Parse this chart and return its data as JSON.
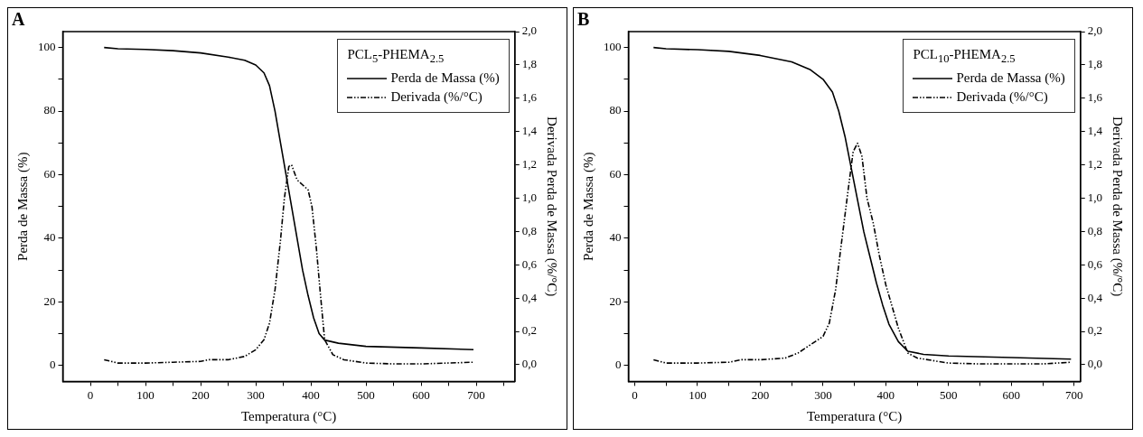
{
  "chart_data": [
    {
      "type": "line",
      "title": "A",
      "legend_title": "PCL$_{5}$-PHEMA$_{2.5}$",
      "xlabel": "Temperatura (°C)",
      "ylabel": "Perda de Massa (%)",
      "y2label": "Derivada Perda de Massa (%/°C)",
      "xlim": [
        -50,
        770
      ],
      "xticks": [
        0,
        {
          "value": 50,
          "label": null
        },
        100,
        {
          "value": 150,
          "label": null
        },
        200,
        {
          "value": 250,
          "label": null
        },
        300,
        {
          "value": 350,
          "label": null
        },
        400,
        {
          "value": 450,
          "label": null
        },
        500,
        {
          "value": 550,
          "label": null
        },
        600,
        {
          "value": 650,
          "label": null
        },
        700,
        {
          "value": 750,
          "label": null
        }
      ],
      "ylim": [
        -5,
        105
      ],
      "yticks": [
        0,
        {
          "value": 10,
          "label": null
        },
        20,
        {
          "value": 30,
          "label": null
        },
        40,
        {
          "value": 50,
          "label": null
        },
        60,
        {
          "value": 70,
          "label": null
        },
        80,
        {
          "value": 90,
          "label": null
        },
        100
      ],
      "y2lim": [
        -0.1,
        2.0
      ],
      "y2ticks": [
        {
          "value": 0,
          "label": "0,0"
        },
        {
          "value": 0.2,
          "label": "0,2"
        },
        {
          "value": 0.4,
          "label": "0,4"
        },
        {
          "value": 0.6,
          "label": "0,6"
        },
        {
          "value": 0.8,
          "label": "0,8"
        },
        {
          "value": 1.0,
          "label": "1,0"
        },
        {
          "value": 1.2,
          "label": "1,2"
        },
        {
          "value": 1.4,
          "label": "1,4"
        },
        {
          "value": 1.6,
          "label": "1,6"
        },
        {
          "value": 1.8,
          "label": "1,8"
        },
        {
          "value": 2.0,
          "label": "2,0"
        }
      ],
      "grid": false,
      "legend": "top right",
      "series": [
        {
          "name": "Perda de Massa (%)",
          "color": "#000000",
          "line_style": "solid",
          "x": [
            25,
            50,
            100,
            150,
            200,
            250,
            280,
            300,
            315,
            325,
            335,
            345,
            355,
            365,
            375,
            385,
            395,
            405,
            415,
            425,
            450,
            500,
            600,
            695
          ],
          "values": [
            100,
            99.6,
            99.4,
            99,
            98.3,
            97,
            96,
            94.5,
            92,
            88,
            80,
            70,
            60,
            50,
            40,
            30,
            22,
            15,
            10,
            8,
            7,
            6,
            5.5,
            5
          ]
        },
        {
          "name": "Derivada (%/°C)",
          "color": "#000000",
          "line_style": "dashed",
          "axis": "y2",
          "x": [
            25,
            50,
            100,
            150,
            200,
            215,
            250,
            280,
            300,
            315,
            325,
            335,
            345,
            352,
            360,
            365,
            375,
            385,
            395,
            402,
            410,
            418,
            425,
            440,
            460,
            500,
            550,
            600,
            695
          ],
          "values": [
            0.03,
            0.01,
            0.01,
            0.015,
            0.02,
            0.03,
            0.03,
            0.05,
            0.09,
            0.15,
            0.25,
            0.45,
            0.75,
            1.0,
            1.19,
            1.2,
            1.11,
            1.08,
            1.05,
            0.95,
            0.7,
            0.4,
            0.15,
            0.06,
            0.03,
            0.01,
            0.005,
            0.005,
            0.015
          ]
        }
      ]
    },
    {
      "type": "line",
      "title": "B",
      "legend_title": "PCL$_{10}$-PHEMA$_{2.5}$",
      "xlabel": "Temperatura (°C)",
      "ylabel": "Perda de Massa (%)",
      "y2label": "Derivada Perda de Massa (%/°C)",
      "xlim": [
        -10,
        710
      ],
      "xticks": [
        0,
        {
          "value": 50,
          "label": null
        },
        100,
        {
          "value": 150,
          "label": null
        },
        200,
        {
          "value": 250,
          "label": null
        },
        300,
        {
          "value": 350,
          "label": null
        },
        400,
        {
          "value": 450,
          "label": null
        },
        500,
        {
          "value": 550,
          "label": null
        },
        600,
        {
          "value": 650,
          "label": null
        },
        700
      ],
      "ylim": [
        -5,
        105
      ],
      "yticks": [
        0,
        {
          "value": 10,
          "label": null
        },
        20,
        {
          "value": 30,
          "label": null
        },
        40,
        {
          "value": 50,
          "label": null
        },
        60,
        {
          "value": 70,
          "label": null
        },
        80,
        {
          "value": 90,
          "label": null
        },
        100
      ],
      "y2lim": [
        -0.1,
        2.0
      ],
      "y2ticks": [
        {
          "value": 0,
          "label": "0,0"
        },
        {
          "value": 0.2,
          "label": "0,2"
        },
        {
          "value": 0.4,
          "label": "0,4"
        },
        {
          "value": 0.6,
          "label": "0,6"
        },
        {
          "value": 0.8,
          "label": "0,8"
        },
        {
          "value": 1.0,
          "label": "1,0"
        },
        {
          "value": 1.2,
          "label": "1,2"
        },
        {
          "value": 1.4,
          "label": "1,4"
        },
        {
          "value": 1.6,
          "label": "1,6"
        },
        {
          "value": 1.8,
          "label": "1,8"
        },
        {
          "value": 2.0,
          "label": "2,0"
        }
      ],
      "grid": false,
      "legend": "top right",
      "series": [
        {
          "name": "Perda de Massa (%)",
          "color": "#000000",
          "line_style": "solid",
          "x": [
            30,
            50,
            100,
            150,
            200,
            250,
            280,
            300,
            315,
            325,
            335,
            345,
            355,
            365,
            375,
            385,
            395,
            405,
            420,
            435,
            460,
            500,
            600,
            695
          ],
          "values": [
            100,
            99.6,
            99.3,
            98.8,
            97.5,
            95.5,
            93,
            90,
            86,
            80,
            72,
            62,
            52,
            42,
            34,
            26,
            19,
            13,
            7.5,
            4.5,
            3.5,
            3,
            2.5,
            2
          ]
        },
        {
          "name": "Derivada (%/°C)",
          "color": "#000000",
          "line_style": "dashed",
          "axis": "y2",
          "x": [
            30,
            50,
            100,
            150,
            170,
            200,
            240,
            260,
            280,
            300,
            310,
            320,
            330,
            340,
            348,
            355,
            362,
            370,
            380,
            390,
            400,
            410,
            420,
            435,
            450,
            500,
            550,
            600,
            650,
            695
          ],
          "values": [
            0.03,
            0.01,
            0.01,
            0.015,
            0.03,
            0.03,
            0.04,
            0.07,
            0.12,
            0.17,
            0.25,
            0.45,
            0.75,
            1.05,
            1.28,
            1.33,
            1.25,
            1.0,
            0.85,
            0.65,
            0.48,
            0.35,
            0.22,
            0.07,
            0.04,
            0.01,
            0.005,
            0.005,
            0.005,
            0.015
          ]
        }
      ]
    }
  ]
}
